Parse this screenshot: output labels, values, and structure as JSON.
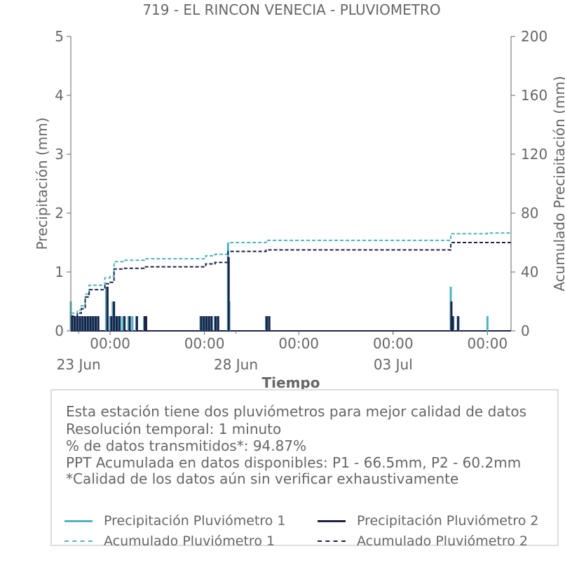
{
  "chart_data": {
    "type": "bar",
    "title": "719 - EL RINCON VENECIA - PLUVIOMETRO",
    "xlabel": "Tiempo",
    "ylabel": "Precipitación (mm)",
    "y2label": "Acumulado Precipitación (mm)",
    "ylim": [
      0,
      5
    ],
    "y2lim": [
      0,
      200
    ],
    "yticks": [
      "0",
      "1",
      "2",
      "3",
      "4",
      "5"
    ],
    "y2ticks": [
      "0",
      "40",
      "80",
      "120",
      "160",
      "200"
    ],
    "xrange": [
      "2024-06-22T18:00",
      "2024-07-06T18:00"
    ],
    "xticks_major": [
      {
        "x": "2024-06-24T00:00",
        "label": "00:00"
      },
      {
        "x": "2024-06-27T00:00",
        "label": "00:00"
      },
      {
        "x": "2024-06-30T00:00",
        "label": "00:00"
      },
      {
        "x": "2024-07-03T00:00",
        "label": "00:00"
      },
      {
        "x": "2024-07-06T00:00",
        "label": "00:00"
      }
    ],
    "xticks_minor": [
      {
        "x": "2024-06-23T00:00",
        "label": "23 Jun"
      },
      {
        "x": "2024-06-28T00:00",
        "label": "28 Jun"
      },
      {
        "x": "2024-07-03T00:00",
        "label": "03 Jul"
      }
    ],
    "grid": false,
    "series": [
      {
        "name": "Precipitación Pluviómetro 1",
        "type": "bar",
        "axis": "left",
        "color": "#4fb3c0",
        "points": [
          [
            "2024-06-22T18:00",
            0.5
          ],
          [
            "2024-06-22T20:00",
            0.25
          ],
          [
            "2024-06-22T22:00",
            0.25
          ],
          [
            "2024-06-23T00:00",
            0.25
          ],
          [
            "2024-06-23T02:00",
            0.25
          ],
          [
            "2024-06-23T04:00",
            0.25
          ],
          [
            "2024-06-23T06:00",
            0.25
          ],
          [
            "2024-06-23T08:00",
            0.25
          ],
          [
            "2024-06-23T10:00",
            0.25
          ],
          [
            "2024-06-23T12:00",
            0.25
          ],
          [
            "2024-06-23T14:00",
            0.25
          ],
          [
            "2024-06-23T21:00",
            0.75
          ],
          [
            "2024-06-24T00:00",
            0.25
          ],
          [
            "2024-06-24T02:00",
            0.5
          ],
          [
            "2024-06-24T04:00",
            0.25
          ],
          [
            "2024-06-24T06:00",
            0.25
          ],
          [
            "2024-06-24T08:00",
            0.25
          ],
          [
            "2024-06-24T10:00",
            0.25
          ],
          [
            "2024-06-24T14:00",
            0.25
          ],
          [
            "2024-06-24T17:00",
            0.25
          ],
          [
            "2024-06-24T20:00",
            0.25
          ],
          [
            "2024-06-25T02:00",
            0.25
          ],
          [
            "2024-06-25T03:00",
            0.25
          ],
          [
            "2024-06-26T21:00",
            0.25
          ],
          [
            "2024-06-26T23:00",
            0.25
          ],
          [
            "2024-06-27T01:00",
            0.25
          ],
          [
            "2024-06-27T03:00",
            0.25
          ],
          [
            "2024-06-27T05:00",
            0.25
          ],
          [
            "2024-06-27T08:00",
            0.25
          ],
          [
            "2024-06-27T10:00",
            0.25
          ],
          [
            "2024-06-27T18:00",
            1.5
          ],
          [
            "2024-06-27T19:00",
            0.5
          ],
          [
            "2024-06-28T23:00",
            0.25
          ],
          [
            "2024-06-29T01:00",
            0.25
          ],
          [
            "2024-07-04T20:00",
            0.75
          ],
          [
            "2024-07-04T22:00",
            0.25
          ],
          [
            "2024-07-05T02:00",
            0.25
          ],
          [
            "2024-07-06T00:00",
            0.25
          ]
        ]
      },
      {
        "name": "Precipitación Pluviómetro 2",
        "type": "bar",
        "axis": "left",
        "color": "#1e2148",
        "points": [
          [
            "2024-06-22T19:00",
            0.25
          ],
          [
            "2024-06-22T21:00",
            0.25
          ],
          [
            "2024-06-22T23:00",
            0.25
          ],
          [
            "2024-06-23T01:00",
            0.25
          ],
          [
            "2024-06-23T03:00",
            0.25
          ],
          [
            "2024-06-23T05:00",
            0.25
          ],
          [
            "2024-06-23T07:00",
            0.25
          ],
          [
            "2024-06-23T09:00",
            0.25
          ],
          [
            "2024-06-23T11:00",
            0.25
          ],
          [
            "2024-06-23T13:00",
            0.25
          ],
          [
            "2024-06-23T15:00",
            0.25
          ],
          [
            "2024-06-23T22:00",
            0.75
          ],
          [
            "2024-06-24T01:00",
            0.25
          ],
          [
            "2024-06-24T03:00",
            0.5
          ],
          [
            "2024-06-24T05:00",
            0.25
          ],
          [
            "2024-06-24T07:00",
            0.25
          ],
          [
            "2024-06-24T11:00",
            0.25
          ],
          [
            "2024-06-24T15:00",
            0.25
          ],
          [
            "2024-06-24T20:30",
            0.25
          ],
          [
            "2024-06-25T02:30",
            0.25
          ],
          [
            "2024-06-25T03:30",
            0.25
          ],
          [
            "2024-06-26T21:30",
            0.25
          ],
          [
            "2024-06-26T23:30",
            0.25
          ],
          [
            "2024-06-27T01:30",
            0.25
          ],
          [
            "2024-06-27T03:30",
            0.25
          ],
          [
            "2024-06-27T05:30",
            0.25
          ],
          [
            "2024-06-27T08:30",
            0.25
          ],
          [
            "2024-06-27T10:30",
            0.25
          ],
          [
            "2024-06-27T18:30",
            1.25
          ],
          [
            "2024-06-28T23:30",
            0.25
          ],
          [
            "2024-06-29T01:30",
            0.25
          ],
          [
            "2024-07-04T20:30",
            0.5
          ],
          [
            "2024-07-04T21:30",
            0.25
          ],
          [
            "2024-07-05T01:30",
            0.25
          ]
        ]
      },
      {
        "name": "Acumulado Pluviómetro 1",
        "type": "step-line",
        "axis": "right",
        "color": "#4fb3c0",
        "points": [
          [
            "2024-06-22T18:00",
            12
          ],
          [
            "2024-06-22T23:00",
            14
          ],
          [
            "2024-06-23T02:00",
            17
          ],
          [
            "2024-06-23T05:00",
            25
          ],
          [
            "2024-06-23T08:00",
            31
          ],
          [
            "2024-06-23T20:00",
            36
          ],
          [
            "2024-06-24T00:00",
            37
          ],
          [
            "2024-06-24T03:00",
            47
          ],
          [
            "2024-06-24T10:00",
            48
          ],
          [
            "2024-06-25T02:00",
            49
          ],
          [
            "2024-06-26T21:00",
            49
          ],
          [
            "2024-06-27T01:00",
            51
          ],
          [
            "2024-06-27T08:00",
            52
          ],
          [
            "2024-06-27T18:00",
            60
          ],
          [
            "2024-06-28T23:00",
            61.5
          ],
          [
            "2024-07-04T20:00",
            66
          ],
          [
            "2024-07-06T00:00",
            66.5
          ],
          [
            "2024-07-06T18:00",
            66.5
          ]
        ]
      },
      {
        "name": "Acumulado Pluviómetro 2",
        "type": "step-line",
        "axis": "right",
        "color": "#1e2148",
        "points": [
          [
            "2024-06-22T18:00",
            10
          ],
          [
            "2024-06-22T23:00",
            12
          ],
          [
            "2024-06-23T02:00",
            15
          ],
          [
            "2024-06-23T05:00",
            23
          ],
          [
            "2024-06-23T08:00",
            28
          ],
          [
            "2024-06-23T20:00",
            32
          ],
          [
            "2024-06-24T00:00",
            33
          ],
          [
            "2024-06-24T03:00",
            42
          ],
          [
            "2024-06-24T10:00",
            42.5
          ],
          [
            "2024-06-25T02:00",
            43.5
          ],
          [
            "2024-06-26T21:00",
            43.5
          ],
          [
            "2024-06-27T01:00",
            45.5
          ],
          [
            "2024-06-27T08:00",
            46.5
          ],
          [
            "2024-06-27T18:00",
            54
          ],
          [
            "2024-06-28T23:00",
            55
          ],
          [
            "2024-07-04T20:00",
            60
          ],
          [
            "2024-07-06T18:00",
            60.2
          ]
        ]
      }
    ]
  },
  "info": {
    "lines": [
      "Esta estación tiene dos pluviómetros para mejor calidad de datos",
      "Resolución temporal: 1 minuto",
      "% de datos transmitidos*: 94.87%",
      "PPT Acumulada en datos disponibles: P1 - 66.5mm, P2 - 60.2mm",
      "*Calidad de los datos aún sin verificar exhaustivamente"
    ]
  },
  "legend": {
    "items": [
      {
        "label": "Precipitación Pluviómetro 1",
        "color": "#4fb3c0",
        "style": "solid"
      },
      {
        "label": "Precipitación Pluviómetro 2",
        "color": "#1e2148",
        "style": "solid"
      },
      {
        "label": "Acumulado Pluviómetro 1",
        "color": "#4fb3c0",
        "style": "dashed"
      },
      {
        "label": "Acumulado Pluviómetro 2",
        "color": "#1e2148",
        "style": "dashed"
      }
    ]
  }
}
